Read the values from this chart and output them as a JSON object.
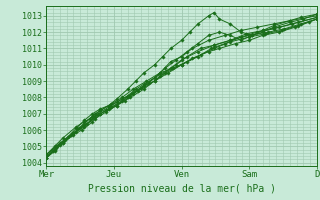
{
  "background_color": "#c8ead8",
  "grid_color": "#a0c8b0",
  "line_color": "#1a6e1a",
  "xlabel": "Pression niveau de la mer( hPa )",
  "ylim": [
    1003.8,
    1013.6
  ],
  "xlim": [
    0,
    5.0
  ],
  "yticks": [
    1004,
    1005,
    1006,
    1007,
    1008,
    1009,
    1010,
    1011,
    1012,
    1013
  ],
  "xtick_labels": [
    "Mer",
    "Jeu",
    "Ven",
    "Sam",
    "D"
  ],
  "xtick_positions": [
    0.0,
    1.25,
    2.5,
    3.75,
    5.0
  ],
  "series": [
    [
      0.0,
      1004.3,
      0.15,
      1004.8,
      0.3,
      1005.2,
      0.5,
      1005.7,
      0.65,
      1006.0,
      0.85,
      1006.5,
      1.0,
      1007.0,
      1.15,
      1007.3,
      1.4,
      1007.8,
      1.6,
      1008.3,
      1.8,
      1008.7,
      2.0,
      1009.0,
      2.2,
      1009.5,
      2.5,
      1010.0,
      2.7,
      1010.4,
      3.0,
      1010.8,
      3.2,
      1011.0,
      3.5,
      1011.3,
      3.75,
      1011.5,
      4.0,
      1011.8,
      4.3,
      1012.0,
      4.6,
      1012.3,
      4.85,
      1012.6,
      5.0,
      1012.8
    ],
    [
      0.0,
      1004.3,
      0.2,
      1005.0,
      0.5,
      1005.8,
      0.7,
      1006.2,
      0.9,
      1006.8,
      1.1,
      1007.2,
      1.3,
      1007.5,
      1.5,
      1008.0,
      1.75,
      1008.6,
      2.0,
      1009.2,
      2.3,
      1009.8,
      2.5,
      1010.3,
      2.8,
      1010.8,
      3.1,
      1011.2,
      3.4,
      1011.5,
      3.75,
      1011.8,
      4.1,
      1012.0,
      4.4,
      1012.2,
      4.7,
      1012.5,
      5.0,
      1012.8
    ],
    [
      0.0,
      1004.5,
      0.25,
      1005.2,
      0.45,
      1005.7,
      0.6,
      1006.1,
      0.8,
      1006.7,
      1.0,
      1007.2,
      1.2,
      1007.6,
      1.4,
      1008.0,
      1.6,
      1008.5,
      1.85,
      1009.0,
      2.1,
      1009.5,
      2.35,
      1009.8,
      2.6,
      1010.2,
      2.85,
      1010.6,
      3.1,
      1011.0,
      3.4,
      1011.4,
      3.75,
      1011.7,
      4.05,
      1011.9,
      4.35,
      1012.1,
      4.65,
      1012.4,
      5.0,
      1012.8
    ],
    [
      0.0,
      1004.5,
      0.3,
      1005.3,
      0.5,
      1005.8,
      0.7,
      1006.3,
      0.9,
      1006.7,
      1.1,
      1007.1,
      1.3,
      1007.5,
      1.55,
      1008.0,
      1.8,
      1008.5,
      2.1,
      1009.3,
      2.4,
      1010.0,
      2.6,
      1010.5,
      2.85,
      1011.0,
      3.1,
      1011.2,
      3.4,
      1011.5,
      3.7,
      1011.9,
      4.0,
      1012.1,
      4.3,
      1012.3,
      4.65,
      1012.6,
      5.0,
      1012.9
    ],
    [
      0.0,
      1004.4,
      0.18,
      1004.9,
      0.35,
      1005.4,
      0.55,
      1005.9,
      0.75,
      1006.4,
      0.95,
      1007.0,
      1.15,
      1007.4,
      1.4,
      1007.9,
      1.7,
      1008.4,
      2.0,
      1009.0,
      2.25,
      1009.5,
      2.5,
      1010.0,
      2.8,
      1010.5,
      3.05,
      1011.0,
      3.3,
      1011.3,
      3.6,
      1011.7,
      3.9,
      1012.0,
      4.2,
      1012.2,
      4.55,
      1012.5,
      5.0,
      1012.9
    ],
    [
      0.0,
      1004.5,
      0.15,
      1005.0,
      0.3,
      1005.5,
      0.55,
      1006.2,
      0.7,
      1006.5,
      0.85,
      1006.8,
      1.0,
      1007.0,
      1.2,
      1007.4,
      1.45,
      1007.8,
      1.6,
      1008.2,
      1.9,
      1008.9,
      2.1,
      1009.5,
      2.3,
      1010.2,
      2.5,
      1010.5,
      2.7,
      1011.0,
      3.0,
      1011.5,
      3.3,
      1011.8,
      3.6,
      1012.1,
      3.9,
      1012.3,
      4.2,
      1012.5,
      4.5,
      1012.7,
      5.0,
      1013.0
    ],
    [
      0.0,
      1004.3,
      0.12,
      1004.7,
      0.25,
      1005.1,
      0.4,
      1005.6,
      0.55,
      1006.1,
      0.7,
      1006.6,
      0.85,
      1007.0,
      1.0,
      1007.3,
      1.15,
      1007.5,
      1.3,
      1007.7,
      1.5,
      1008.1,
      1.65,
      1008.5,
      1.8,
      1008.8,
      2.0,
      1009.2,
      2.2,
      1009.8,
      2.4,
      1010.3,
      2.6,
      1010.8,
      2.8,
      1011.3,
      3.0,
      1011.8,
      3.2,
      1012.0,
      3.4,
      1011.8,
      3.6,
      1011.5,
      3.8,
      1011.8,
      4.0,
      1012.1,
      4.2,
      1012.4,
      4.5,
      1012.7,
      4.7,
      1012.9,
      5.0,
      1013.1
    ],
    [
      0.0,
      1004.3,
      0.15,
      1004.7,
      0.3,
      1005.2,
      0.5,
      1005.8,
      0.7,
      1006.4,
      0.9,
      1007.0,
      1.0,
      1007.2,
      1.15,
      1007.5,
      1.3,
      1007.9,
      1.5,
      1008.5,
      1.65,
      1009.0,
      1.8,
      1009.5,
      2.0,
      1010.0,
      2.15,
      1010.5,
      2.3,
      1011.0,
      2.5,
      1011.5,
      2.65,
      1012.0,
      2.8,
      1012.5,
      3.0,
      1013.0,
      3.1,
      1013.2,
      3.2,
      1012.8,
      3.4,
      1012.5,
      3.6,
      1012.0,
      3.8,
      1011.8,
      4.0,
      1012.0,
      4.2,
      1012.3,
      4.5,
      1012.6,
      4.75,
      1012.8,
      5.0,
      1013.1
    ]
  ]
}
